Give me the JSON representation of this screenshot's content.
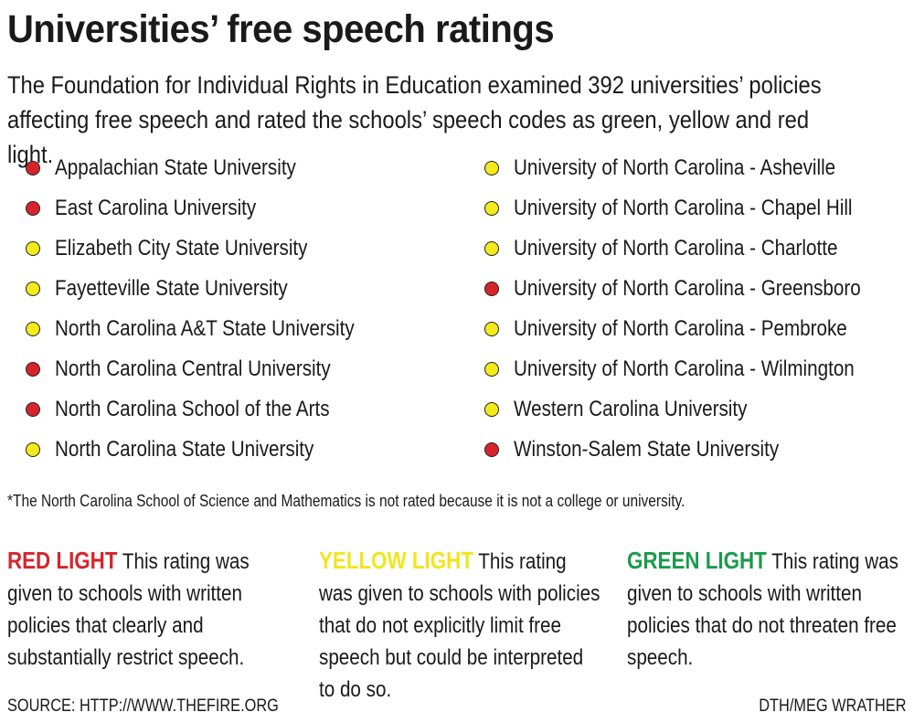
{
  "title": "Universities’ free speech ratings",
  "subtitle": "The Foundation for Individual Rights in Education examined 392 universities’ policies affecting free speech and rated the schools’ speech codes as green, yellow and red light.",
  "colors": {
    "red": "#d7242b",
    "yellow": "#f4ea1a",
    "green": "#1a9b4b"
  },
  "schools_left": [
    {
      "name": "Appalachian State University",
      "rating": "red"
    },
    {
      "name": "East Carolina University",
      "rating": "red"
    },
    {
      "name": "Elizabeth City State University",
      "rating": "yellow"
    },
    {
      "name": "Fayetteville State University",
      "rating": "yellow"
    },
    {
      "name": "North Carolina A&T State University",
      "rating": "yellow"
    },
    {
      "name": "North Carolina Central University",
      "rating": "red"
    },
    {
      "name": "North Carolina School of the Arts",
      "rating": "red"
    },
    {
      "name": "North Carolina State University",
      "rating": "yellow"
    }
  ],
  "schools_right": [
    {
      "name": "University of North Carolina - Asheville",
      "rating": "yellow"
    },
    {
      "name": "University of North Carolina - Chapel Hill",
      "rating": "yellow"
    },
    {
      "name": "University of North Carolina - Charlotte",
      "rating": "yellow"
    },
    {
      "name": "University of North Carolina - Greensboro",
      "rating": "red"
    },
    {
      "name": "University of North Carolina - Pembroke",
      "rating": "yellow"
    },
    {
      "name": "University of North Carolina - Wilmington",
      "rating": "yellow"
    },
    {
      "name": "Western Carolina University",
      "rating": "yellow"
    },
    {
      "name": "Winston-Salem State University",
      "rating": "red"
    }
  ],
  "footnote": "*The North Carolina School of Science and Mathematics is not rated because it is not a college or university.",
  "legend": {
    "red": {
      "heading": "RED LIGHT",
      "text": "This rating was given to schools with written policies that clearly and substantially restrict speech."
    },
    "yellow": {
      "heading": "YELLOW LIGHT",
      "text": "This rating was given to schools with policies that do not explicitly limit free speech but could be interpreted to do so."
    },
    "green": {
      "heading": "GREEN LIGHT",
      "text": "This rating was given to schools with written policies that do not threaten free speech."
    }
  },
  "source": "SOURCE: HTTP://WWW.THEFIRE.ORG",
  "credit": "DTH/MEG WRATHER"
}
